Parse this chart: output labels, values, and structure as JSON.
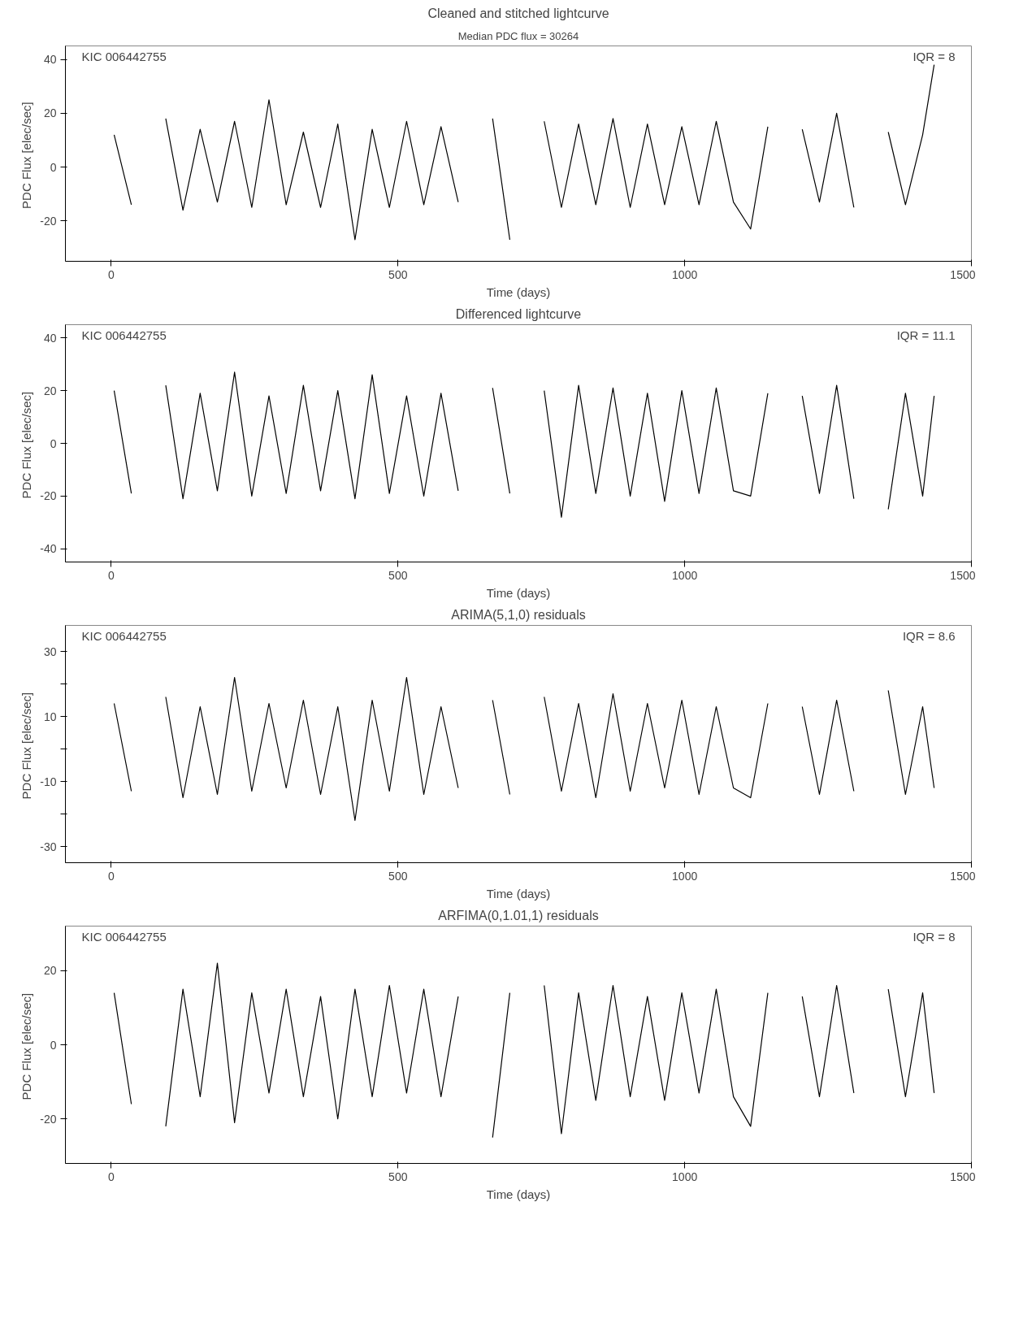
{
  "chart_data": [
    {
      "type": "line",
      "title": "Cleaned and stitched lightcurve",
      "subtitle": "Median PDC flux = 30264",
      "xlabel": "Time (days)",
      "ylabel": "PDC Flux  [elec/sec]",
      "annotations": [
        "KIC 006442755",
        "IQR = 8"
      ],
      "xlim": [
        -80,
        1500
      ],
      "ylim": [
        -35,
        45
      ],
      "xticks": [
        0,
        500,
        1000,
        1500
      ],
      "yticks": [
        -20,
        0,
        20,
        40
      ],
      "grid": false,
      "x": [
        5,
        35,
        65,
        95,
        125,
        155,
        185,
        215,
        245,
        275,
        305,
        335,
        365,
        395,
        425,
        455,
        485,
        515,
        545,
        575,
        605,
        635,
        665,
        695,
        725,
        755,
        785,
        815,
        845,
        875,
        905,
        935,
        965,
        995,
        1025,
        1055,
        1085,
        1115,
        1145,
        1175,
        1205,
        1235,
        1265,
        1295,
        1325,
        1355,
        1385,
        1415,
        1435
      ],
      "series": [
        {
          "color": "#000000",
          "values": [
            12,
            -14,
            null,
            18,
            -16,
            14,
            -13,
            17,
            -15,
            25,
            -14,
            13,
            -15,
            16,
            -27,
            14,
            -15,
            17,
            -14,
            15,
            -13,
            null,
            18,
            -27,
            null,
            17,
            -15,
            16,
            -14,
            18,
            -15,
            16,
            -14,
            15,
            -14,
            17,
            -13,
            -23,
            15,
            null,
            14,
            -13,
            20,
            -15,
            null,
            13,
            -14,
            12,
            38
          ]
        }
      ]
    },
    {
      "type": "line",
      "title": "Differenced lightcurve",
      "xlabel": "Time (days)",
      "ylabel": "PDC Flux  [elec/sec]",
      "annotations": [
        "KIC 006442755",
        "IQR = 11.1"
      ],
      "xlim": [
        -80,
        1500
      ],
      "ylim": [
        -45,
        45
      ],
      "xticks": [
        0,
        500,
        1000,
        1500
      ],
      "yticks": [
        -40,
        -20,
        0,
        20,
        40
      ],
      "grid": false,
      "x": [
        5,
        35,
        65,
        95,
        125,
        155,
        185,
        215,
        245,
        275,
        305,
        335,
        365,
        395,
        425,
        455,
        485,
        515,
        545,
        575,
        605,
        635,
        665,
        695,
        725,
        755,
        785,
        815,
        845,
        875,
        905,
        935,
        965,
        995,
        1025,
        1055,
        1085,
        1115,
        1145,
        1175,
        1205,
        1235,
        1265,
        1295,
        1325,
        1355,
        1385,
        1415,
        1435
      ],
      "series": [
        {
          "color": "#000000",
          "values": [
            20,
            -19,
            null,
            22,
            -21,
            19,
            -18,
            27,
            -20,
            18,
            -19,
            22,
            -18,
            20,
            -21,
            26,
            -19,
            18,
            -20,
            19,
            -18,
            null,
            21,
            -19,
            null,
            20,
            -28,
            22,
            -19,
            21,
            -20,
            19,
            -22,
            20,
            -19,
            21,
            -18,
            -20,
            19,
            null,
            18,
            -19,
            22,
            -21,
            null,
            -25,
            19,
            -20,
            18
          ]
        }
      ]
    },
    {
      "type": "line",
      "title": "ARIMA(5,1,0) residuals",
      "xlabel": "Time (days)",
      "ylabel": "PDC Flux  [elec/sec]",
      "annotations": [
        "KIC 006442755",
        "IQR = 8.6"
      ],
      "xlim": [
        -80,
        1500
      ],
      "ylim": [
        -35,
        38
      ],
      "xticks": [
        0,
        500,
        1000,
        1500
      ],
      "yticks": [
        -30,
        {
          "value": -20,
          "label": null
        },
        -10,
        {
          "value": 0,
          "label": null
        },
        10,
        {
          "value": 20,
          "label": null
        },
        30
      ],
      "grid": false,
      "x": [
        5,
        35,
        65,
        95,
        125,
        155,
        185,
        215,
        245,
        275,
        305,
        335,
        365,
        395,
        425,
        455,
        485,
        515,
        545,
        575,
        605,
        635,
        665,
        695,
        725,
        755,
        785,
        815,
        845,
        875,
        905,
        935,
        965,
        995,
        1025,
        1055,
        1085,
        1115,
        1145,
        1175,
        1205,
        1235,
        1265,
        1295,
        1325,
        1355,
        1385,
        1415,
        1435
      ],
      "series": [
        {
          "color": "#000000",
          "values": [
            14,
            -13,
            null,
            16,
            -15,
            13,
            -14,
            22,
            -13,
            14,
            -12,
            15,
            -14,
            13,
            -22,
            15,
            -13,
            22,
            -14,
            13,
            -12,
            null,
            15,
            -14,
            null,
            16,
            -13,
            14,
            -15,
            17,
            -13,
            14,
            -12,
            15,
            -14,
            13,
            -12,
            -15,
            14,
            null,
            13,
            -14,
            15,
            -13,
            null,
            18,
            -14,
            13,
            -12
          ]
        }
      ]
    },
    {
      "type": "line",
      "title": "ARFIMA(0,1.01,1) residuals",
      "xlabel": "Time (days)",
      "ylabel": "PDC Flux  [elec/sec]",
      "annotations": [
        "KIC 006442755",
        "IQR = 8"
      ],
      "xlim": [
        -80,
        1500
      ],
      "ylim": [
        -32,
        32
      ],
      "xticks": [
        0,
        500,
        1000,
        1500
      ],
      "yticks": [
        -20,
        0,
        20
      ],
      "grid": false,
      "x": [
        5,
        35,
        65,
        95,
        125,
        155,
        185,
        215,
        245,
        275,
        305,
        335,
        365,
        395,
        425,
        455,
        485,
        515,
        545,
        575,
        605,
        635,
        665,
        695,
        725,
        755,
        785,
        815,
        845,
        875,
        905,
        935,
        965,
        995,
        1025,
        1055,
        1085,
        1115,
        1145,
        1175,
        1205,
        1235,
        1265,
        1295,
        1325,
        1355,
        1385,
        1415,
        1435
      ],
      "series": [
        {
          "color": "#000000",
          "values": [
            14,
            -16,
            null,
            -22,
            15,
            -14,
            22,
            -21,
            14,
            -13,
            15,
            -14,
            13,
            -20,
            15,
            -14,
            16,
            -13,
            15,
            -14,
            13,
            null,
            -25,
            14,
            null,
            16,
            -24,
            14,
            -15,
            16,
            -14,
            13,
            -15,
            14,
            -13,
            15,
            -14,
            -22,
            14,
            null,
            13,
            -14,
            16,
            -13,
            null,
            15,
            -14,
            14,
            -13
          ]
        }
      ]
    }
  ]
}
